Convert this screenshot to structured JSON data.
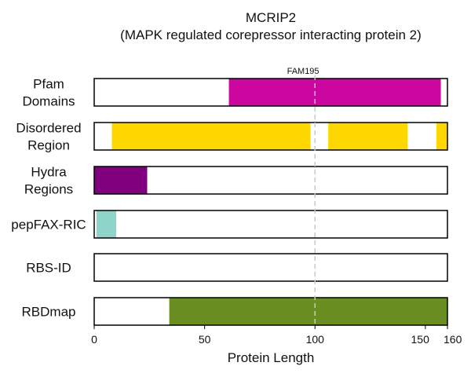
{
  "chart_data": {
    "type": "bar",
    "title": "MCRIP2",
    "subtitle": "(MAPK regulated corepressor interacting protein 2)",
    "xlabel": "Protein Length",
    "xlim": [
      0,
      160
    ],
    "xticks": [
      0,
      50,
      100,
      150,
      160
    ],
    "protein_length": 160,
    "reference_line": {
      "x": 100,
      "style": "dashed"
    },
    "tracks": [
      {
        "label": [
          "Pfam",
          "Domains"
        ],
        "segments": [
          {
            "start": 61,
            "end": 157,
            "color": "#cc079f",
            "label": "FAM195"
          }
        ]
      },
      {
        "label": [
          "Disordered",
          "Region"
        ],
        "segments": [
          {
            "start": 8,
            "end": 98,
            "color": "#ffd700"
          },
          {
            "start": 106,
            "end": 142,
            "color": "#ffd700"
          },
          {
            "start": 155,
            "end": 160,
            "color": "#ffd700"
          }
        ]
      },
      {
        "label": [
          "Hydra",
          "Regions"
        ],
        "segments": [
          {
            "start": 0,
            "end": 24,
            "color": "#800080"
          }
        ]
      },
      {
        "label": [
          "pepFAX-RIC"
        ],
        "segments": [
          {
            "start": 1,
            "end": 10,
            "color": "#8fd4c8"
          }
        ]
      },
      {
        "label": [
          "RBS-ID"
        ],
        "segments": []
      },
      {
        "label": [
          "RBDmap"
        ],
        "segments": [
          {
            "start": 34,
            "end": 160,
            "color": "#6b8e23"
          }
        ]
      }
    ]
  }
}
